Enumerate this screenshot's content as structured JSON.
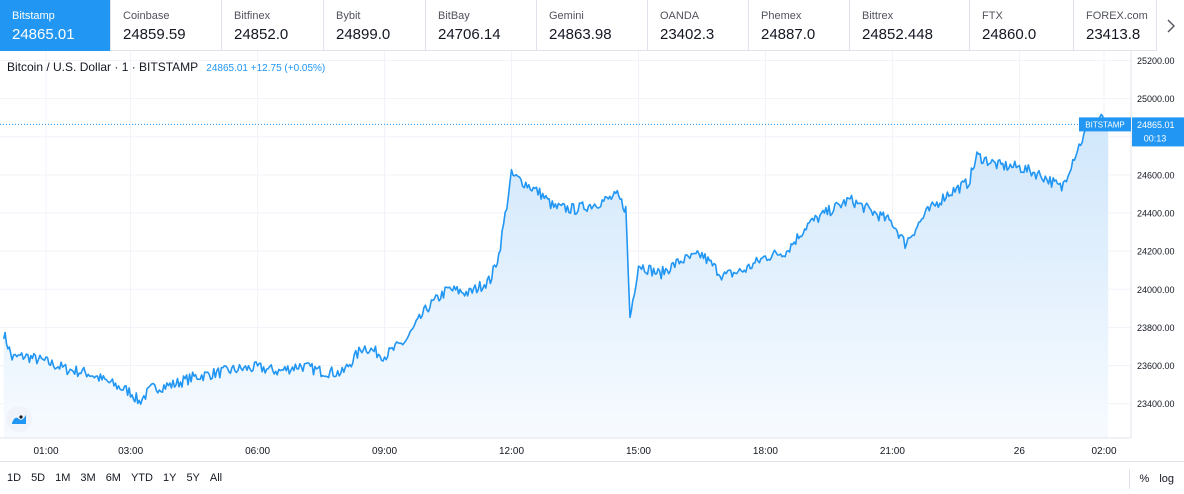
{
  "exchanges": [
    {
      "name": "Bitstamp",
      "price": "24865.01",
      "active": true
    },
    {
      "name": "Coinbase",
      "price": "24859.59",
      "active": false
    },
    {
      "name": "Bitfinex",
      "price": "24852.0",
      "active": false
    },
    {
      "name": "Bybit",
      "price": "24899.0",
      "active": false
    },
    {
      "name": "BitBay",
      "price": "24706.14",
      "active": false
    },
    {
      "name": "Gemini",
      "price": "24863.98",
      "active": false
    },
    {
      "name": "OANDA",
      "price": "23402.3",
      "active": false
    },
    {
      "name": "Phemex",
      "price": "24887.0",
      "active": false
    },
    {
      "name": "Bittrex",
      "price": "24852.448",
      "active": false
    },
    {
      "name": "FTX",
      "price": "24860.0",
      "active": false
    },
    {
      "name": "FOREX.com",
      "price": "23413.8",
      "active": false
    }
  ],
  "legend": {
    "symbol": "Bitcoin / U.S. Dollar · 1 · BITSTAMP",
    "value": "24865.01 +12.75 (+0.05%)"
  },
  "price_label": {
    "exchange": "BITSTAMP",
    "price": "24865.01",
    "countdown": "00:13"
  },
  "time_ranges": [
    "1D",
    "5D",
    "1M",
    "3M",
    "6M",
    "YTD",
    "1Y",
    "5Y",
    "All"
  ],
  "scale_options": {
    "percent": "%",
    "log": "log"
  },
  "colors": {
    "accent": "#2196f3",
    "line": "#2196f3",
    "fill_top": "#cfe6fb",
    "fill_bottom": "#f7fbff"
  },
  "icons": {
    "next": "chevron-right-icon",
    "logo": "tradingview-logo-icon"
  },
  "chart_data": {
    "type": "area",
    "y_ticks": [
      "25200.00",
      "25000.00",
      "24800.00",
      "24600.00",
      "24400.00",
      "24200.00",
      "24000.00",
      "23800.00",
      "23600.00",
      "23400.00"
    ],
    "ylim": [
      23220,
      25250
    ],
    "x_ticks": [
      "01:00",
      "03:00",
      "06:00",
      "09:00",
      "12:00",
      "15:00",
      "18:00",
      "21:00",
      "26",
      "02:00"
    ],
    "x_tick_hours": [
      1,
      3,
      6,
      9,
      12,
      15,
      18,
      21,
      24,
      26
    ],
    "series": [
      {
        "points": [
          [
            0.0,
            23770
          ],
          [
            0.2,
            23640
          ],
          [
            0.5,
            23650
          ],
          [
            1.0,
            23620
          ],
          [
            1.5,
            23580
          ],
          [
            2.0,
            23560
          ],
          [
            2.5,
            23510
          ],
          [
            3.0,
            23460
          ],
          [
            3.2,
            23410
          ],
          [
            3.5,
            23480
          ],
          [
            4.0,
            23500
          ],
          [
            4.5,
            23540
          ],
          [
            5.0,
            23560
          ],
          [
            5.5,
            23580
          ],
          [
            6.0,
            23590
          ],
          [
            6.5,
            23570
          ],
          [
            7.0,
            23600
          ],
          [
            7.5,
            23570
          ],
          [
            8.0,
            23560
          ],
          [
            8.5,
            23700
          ],
          [
            9.0,
            23650
          ],
          [
            9.5,
            23730
          ],
          [
            10.0,
            23900
          ],
          [
            10.5,
            24000
          ],
          [
            11.0,
            23980
          ],
          [
            11.5,
            24050
          ],
          [
            11.7,
            24180
          ],
          [
            12.0,
            24600
          ],
          [
            12.3,
            24560
          ],
          [
            12.7,
            24500
          ],
          [
            13.0,
            24430
          ],
          [
            13.5,
            24420
          ],
          [
            14.0,
            24450
          ],
          [
            14.5,
            24490
          ],
          [
            14.7,
            24420
          ],
          [
            14.8,
            23850
          ],
          [
            15.0,
            24130
          ],
          [
            15.5,
            24080
          ],
          [
            16.0,
            24150
          ],
          [
            16.5,
            24180
          ],
          [
            17.0,
            24070
          ],
          [
            17.5,
            24100
          ],
          [
            18.0,
            24170
          ],
          [
            18.5,
            24200
          ],
          [
            19.0,
            24340
          ],
          [
            19.5,
            24410
          ],
          [
            20.0,
            24470
          ],
          [
            20.5,
            24410
          ],
          [
            21.0,
            24350
          ],
          [
            21.3,
            24240
          ],
          [
            21.8,
            24400
          ],
          [
            22.3,
            24500
          ],
          [
            22.8,
            24560
          ],
          [
            23.0,
            24700
          ],
          [
            23.5,
            24650
          ],
          [
            24.0,
            24640
          ],
          [
            24.5,
            24600
          ],
          [
            24.8,
            24560
          ],
          [
            25.0,
            24530
          ],
          [
            25.3,
            24700
          ],
          [
            25.6,
            24840
          ],
          [
            25.9,
            24900
          ],
          [
            26.1,
            24865
          ]
        ]
      }
    ]
  }
}
